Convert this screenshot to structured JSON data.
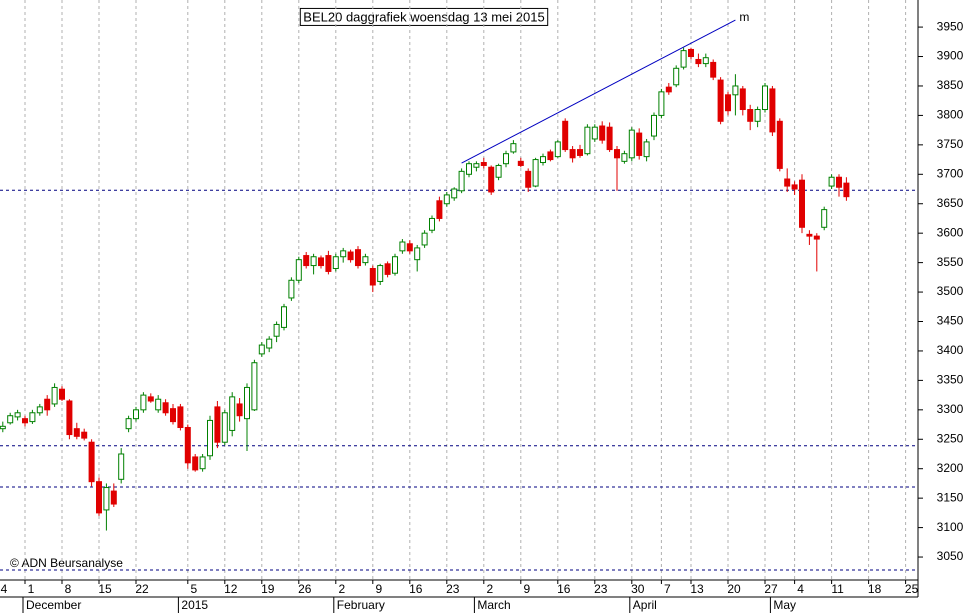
{
  "chart_data": {
    "type": "candlestick",
    "title": "BEL20 daggrafiek woensdag 13 mei 2015",
    "copyright": "© ADN Beursanalyse",
    "categories": [
      "4",
      null,
      null,
      null,
      null,
      "1",
      null,
      null,
      null,
      null,
      "8",
      null,
      null,
      null,
      null,
      "15",
      null,
      null,
      null,
      null,
      "22",
      null,
      null,
      null,
      null,
      null,
      null,
      "5",
      null,
      null,
      null,
      null,
      "12",
      null,
      null,
      null,
      null,
      "19",
      null,
      null,
      null,
      null,
      "26",
      null,
      null,
      null,
      null,
      "2",
      null,
      null,
      null,
      null,
      "9",
      null,
      null,
      null,
      null,
      "16",
      null,
      null,
      null,
      null,
      "23",
      null,
      null,
      null,
      null,
      "2",
      null,
      null,
      null,
      null,
      "9",
      null,
      null,
      null,
      null,
      "16",
      null,
      null,
      null,
      null,
      "23",
      null,
      null,
      null,
      null,
      "30",
      null,
      null,
      null,
      "7",
      null,
      null,
      null,
      "13",
      null,
      null,
      null,
      null,
      "20",
      null,
      null,
      null,
      null,
      "27",
      null,
      null,
      null,
      "4",
      null,
      null,
      null,
      null,
      "11",
      null,
      null,
      null,
      null,
      "18",
      null,
      null,
      null,
      null,
      "25",
      null
    ],
    "month_categories": [
      null,
      null,
      null,
      null,
      null,
      "December",
      null,
      null,
      null,
      null,
      null,
      null,
      null,
      null,
      null,
      null,
      null,
      null,
      null,
      null,
      null,
      null,
      null,
      null,
      null,
      null,
      "2015",
      null,
      null,
      null,
      null,
      null,
      null,
      null,
      null,
      null,
      null,
      null,
      null,
      null,
      null,
      null,
      null,
      null,
      null,
      null,
      null,
      "February",
      null,
      null,
      null,
      null,
      null,
      null,
      null,
      null,
      null,
      null,
      null,
      null,
      null,
      null,
      null,
      null,
      null,
      null,
      "March",
      null,
      null,
      null,
      null,
      null,
      null,
      null,
      null,
      null,
      null,
      null,
      null,
      null,
      null,
      null,
      null,
      null,
      null,
      null,
      null,
      "April",
      null,
      null,
      null,
      null,
      null,
      null,
      null,
      null,
      null,
      null,
      null,
      null,
      null,
      null,
      null,
      null,
      null,
      null,
      "May",
      null,
      null,
      null,
      null,
      null,
      null,
      null,
      null,
      null,
      null,
      null,
      null,
      null,
      null,
      null,
      null
    ],
    "open": [
      3270,
      3262,
      3268,
      3278,
      3288,
      3285,
      3280,
      3295,
      3318,
      3310,
      3335,
      3315,
      3268,
      3262,
      3245,
      3178,
      3130,
      3162,
      3182,
      3268,
      3285,
      3300,
      3322,
      3300,
      3312,
      3302,
      3305,
      3270,
      3220,
      3200,
      3222,
      3305,
      3245,
      3265,
      3310,
      3285,
      3300,
      3395,
      3405,
      3425,
      3440,
      3490,
      3520,
      3562,
      3545,
      3558,
      3562,
      3540,
      3560,
      3568,
      3572,
      3550,
      3540,
      3518,
      3548,
      3532,
      3570,
      3582,
      3555,
      3580,
      3605,
      3655,
      3650,
      3660,
      3672,
      3700,
      3712,
      3720,
      3712,
      3695,
      3718,
      3738,
      3722,
      3705,
      3680,
      3720,
      3738,
      3730,
      3790,
      3742,
      3742,
      3735,
      3760,
      3782,
      3780,
      3742,
      3722,
      3728,
      3770,
      3730,
      3765,
      3800,
      3848,
      3852,
      3882,
      3912,
      3895,
      3888,
      3890,
      3860,
      3835,
      3835,
      3845,
      3810,
      3790,
      3810,
      3845,
      3790,
      3692,
      3682,
      3690,
      3598,
      3595,
      3610,
      3680,
      3695,
      3685,
      null,
      null,
      null,
      null,
      null,
      null,
      null,
      null,
      null
    ],
    "high": [
      3278,
      3275,
      3280,
      3295,
      3300,
      3290,
      3300,
      3310,
      3325,
      3345,
      3340,
      3318,
      3278,
      3268,
      3250,
      3185,
      3175,
      3175,
      3235,
      3290,
      3305,
      3330,
      3328,
      3325,
      3318,
      3310,
      3310,
      3275,
      3225,
      3225,
      3290,
      3315,
      3300,
      3330,
      3320,
      3345,
      3385,
      3415,
      3425,
      3450,
      3480,
      3525,
      3560,
      3568,
      3565,
      3562,
      3570,
      3565,
      3575,
      3572,
      3578,
      3565,
      3545,
      3548,
      3552,
      3565,
      3590,
      3588,
      3580,
      3605,
      3630,
      3662,
      3670,
      3678,
      3710,
      3722,
      3722,
      3728,
      3715,
      3718,
      3740,
      3758,
      3728,
      3710,
      3728,
      3735,
      3742,
      3758,
      3795,
      3748,
      3750,
      3785,
      3785,
      3790,
      3788,
      3748,
      3740,
      3780,
      3778,
      3760,
      3805,
      3845,
      3855,
      3885,
      3915,
      3915,
      3905,
      3905,
      3895,
      3865,
      3840,
      3870,
      3850,
      3818,
      3815,
      3855,
      3850,
      3795,
      3710,
      3688,
      3700,
      3605,
      3600,
      3645,
      3700,
      3700,
      3695,
      null,
      null,
      null,
      null,
      null,
      null,
      null,
      null,
      null
    ],
    "low": [
      3260,
      3258,
      3262,
      3275,
      3282,
      3272,
      3276,
      3290,
      3290,
      3305,
      3315,
      3250,
      3250,
      3248,
      3170,
      3120,
      3095,
      3135,
      3175,
      3262,
      3280,
      3295,
      3312,
      3295,
      3290,
      3275,
      3265,
      3200,
      3195,
      3195,
      3215,
      3235,
      3240,
      3255,
      3280,
      3230,
      3298,
      3390,
      3398,
      3415,
      3435,
      3485,
      3515,
      3540,
      3530,
      3540,
      3530,
      3535,
      3550,
      3550,
      3540,
      3545,
      3500,
      3512,
      3525,
      3528,
      3565,
      3565,
      3535,
      3575,
      3600,
      3620,
      3645,
      3655,
      3668,
      3695,
      3705,
      3710,
      3665,
      3690,
      3712,
      3735,
      3712,
      3670,
      3678,
      3715,
      3722,
      3728,
      3738,
      3720,
      3728,
      3732,
      3755,
      3752,
      3738,
      3672,
      3718,
      3722,
      3725,
      3722,
      3758,
      3795,
      3835,
      3848,
      3878,
      3895,
      3882,
      3882,
      3860,
      3785,
      3800,
      3800,
      3800,
      3775,
      3780,
      3805,
      3765,
      3705,
      3670,
      3665,
      3600,
      3580,
      3535,
      3605,
      3675,
      3662,
      3655,
      null,
      null,
      null,
      null,
      null,
      null,
      null,
      null,
      null
    ],
    "close": [
      3265,
      3270,
      3272,
      3290,
      3295,
      3278,
      3295,
      3305,
      3300,
      3338,
      3318,
      3258,
      3255,
      3252,
      3178,
      3125,
      3168,
      3140,
      3225,
      3285,
      3300,
      3325,
      3315,
      3318,
      3295,
      3280,
      3270,
      3210,
      3198,
      3220,
      3282,
      3245,
      3295,
      3322,
      3290,
      3338,
      3380,
      3410,
      3420,
      3445,
      3475,
      3520,
      3555,
      3545,
      3560,
      3545,
      3535,
      3560,
      3570,
      3555,
      3545,
      3560,
      3512,
      3545,
      3530,
      3560,
      3585,
      3570,
      3575,
      3600,
      3625,
      3625,
      3665,
      3675,
      3705,
      3718,
      3718,
      3715,
      3670,
      3715,
      3735,
      3752,
      3715,
      3678,
      3725,
      3730,
      3725,
      3755,
      3742,
      3728,
      3732,
      3780,
      3780,
      3758,
      3742,
      3728,
      3735,
      3775,
      3732,
      3755,
      3800,
      3840,
      3840,
      3880,
      3910,
      3900,
      3888,
      3898,
      3865,
      3790,
      3808,
      3850,
      3810,
      3790,
      3810,
      3850,
      3772,
      3710,
      3680,
      3675,
      3610,
      3595,
      3590,
      3640,
      3695,
      3678,
      3662,
      null,
      null,
      null,
      null,
      null,
      null,
      null,
      null,
      null
    ],
    "up_color": "#008000",
    "down_color": "#e00000",
    "ylim": [
      3011,
      3996
    ],
    "yticks": [
      3050,
      3100,
      3150,
      3200,
      3250,
      3300,
      3350,
      3400,
      3450,
      3500,
      3550,
      3600,
      3650,
      3700,
      3750,
      3800,
      3850,
      3900,
      3950
    ],
    "reference_lines": [
      3673,
      3239,
      3169,
      3028
    ],
    "reference_color": "#000080",
    "trendline": {
      "label": "m",
      "start": [
        64,
        3719
      ],
      "end": [
        101,
        3962
      ],
      "color": "#0000c0"
    },
    "grid": true
  }
}
